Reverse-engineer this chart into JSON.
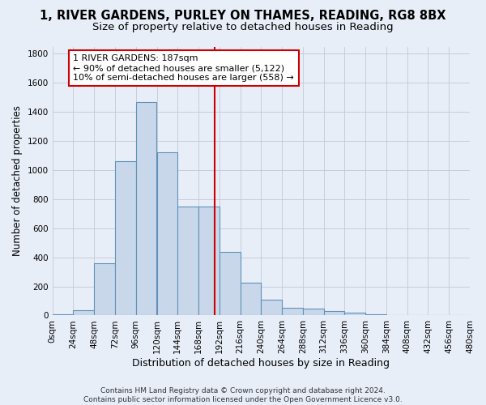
{
  "title1": "1, RIVER GARDENS, PURLEY ON THAMES, READING, RG8 8BX",
  "title2": "Size of property relative to detached houses in Reading",
  "xlabel": "Distribution of detached houses by size in Reading",
  "ylabel": "Number of detached properties",
  "bin_edges": [
    0,
    24,
    48,
    72,
    96,
    120,
    144,
    168,
    192,
    216,
    240,
    264,
    288,
    312,
    336,
    360,
    384,
    408,
    432,
    456,
    480
  ],
  "bar_heights": [
    10,
    35,
    360,
    1060,
    1470,
    1120,
    750,
    750,
    435,
    225,
    110,
    55,
    45,
    30,
    20,
    10,
    5,
    5,
    5,
    5
  ],
  "bar_color": "#c8d8ea",
  "bar_edge_color": "#6090b8",
  "property_size": 187,
  "vline_color": "#cc0000",
  "annotation_text": "1 RIVER GARDENS: 187sqm\n← 90% of detached houses are smaller (5,122)\n10% of semi-detached houses are larger (558) →",
  "annotation_box_color": "#ffffff",
  "annotation_box_edge": "#cc0000",
  "ylim": [
    0,
    1850
  ],
  "yticks": [
    0,
    200,
    400,
    600,
    800,
    1000,
    1200,
    1400,
    1600,
    1800
  ],
  "background_color": "#e8eef8",
  "grid_color": "#c0c8d8",
  "footnote": "Contains HM Land Registry data © Crown copyright and database right 2024.\nContains public sector information licensed under the Open Government Licence v3.0.",
  "title1_fontsize": 10.5,
  "title2_fontsize": 9.5,
  "xlabel_fontsize": 9,
  "ylabel_fontsize": 8.5,
  "tick_fontsize": 7.5,
  "annotation_fontsize": 8,
  "footnote_fontsize": 6.5
}
